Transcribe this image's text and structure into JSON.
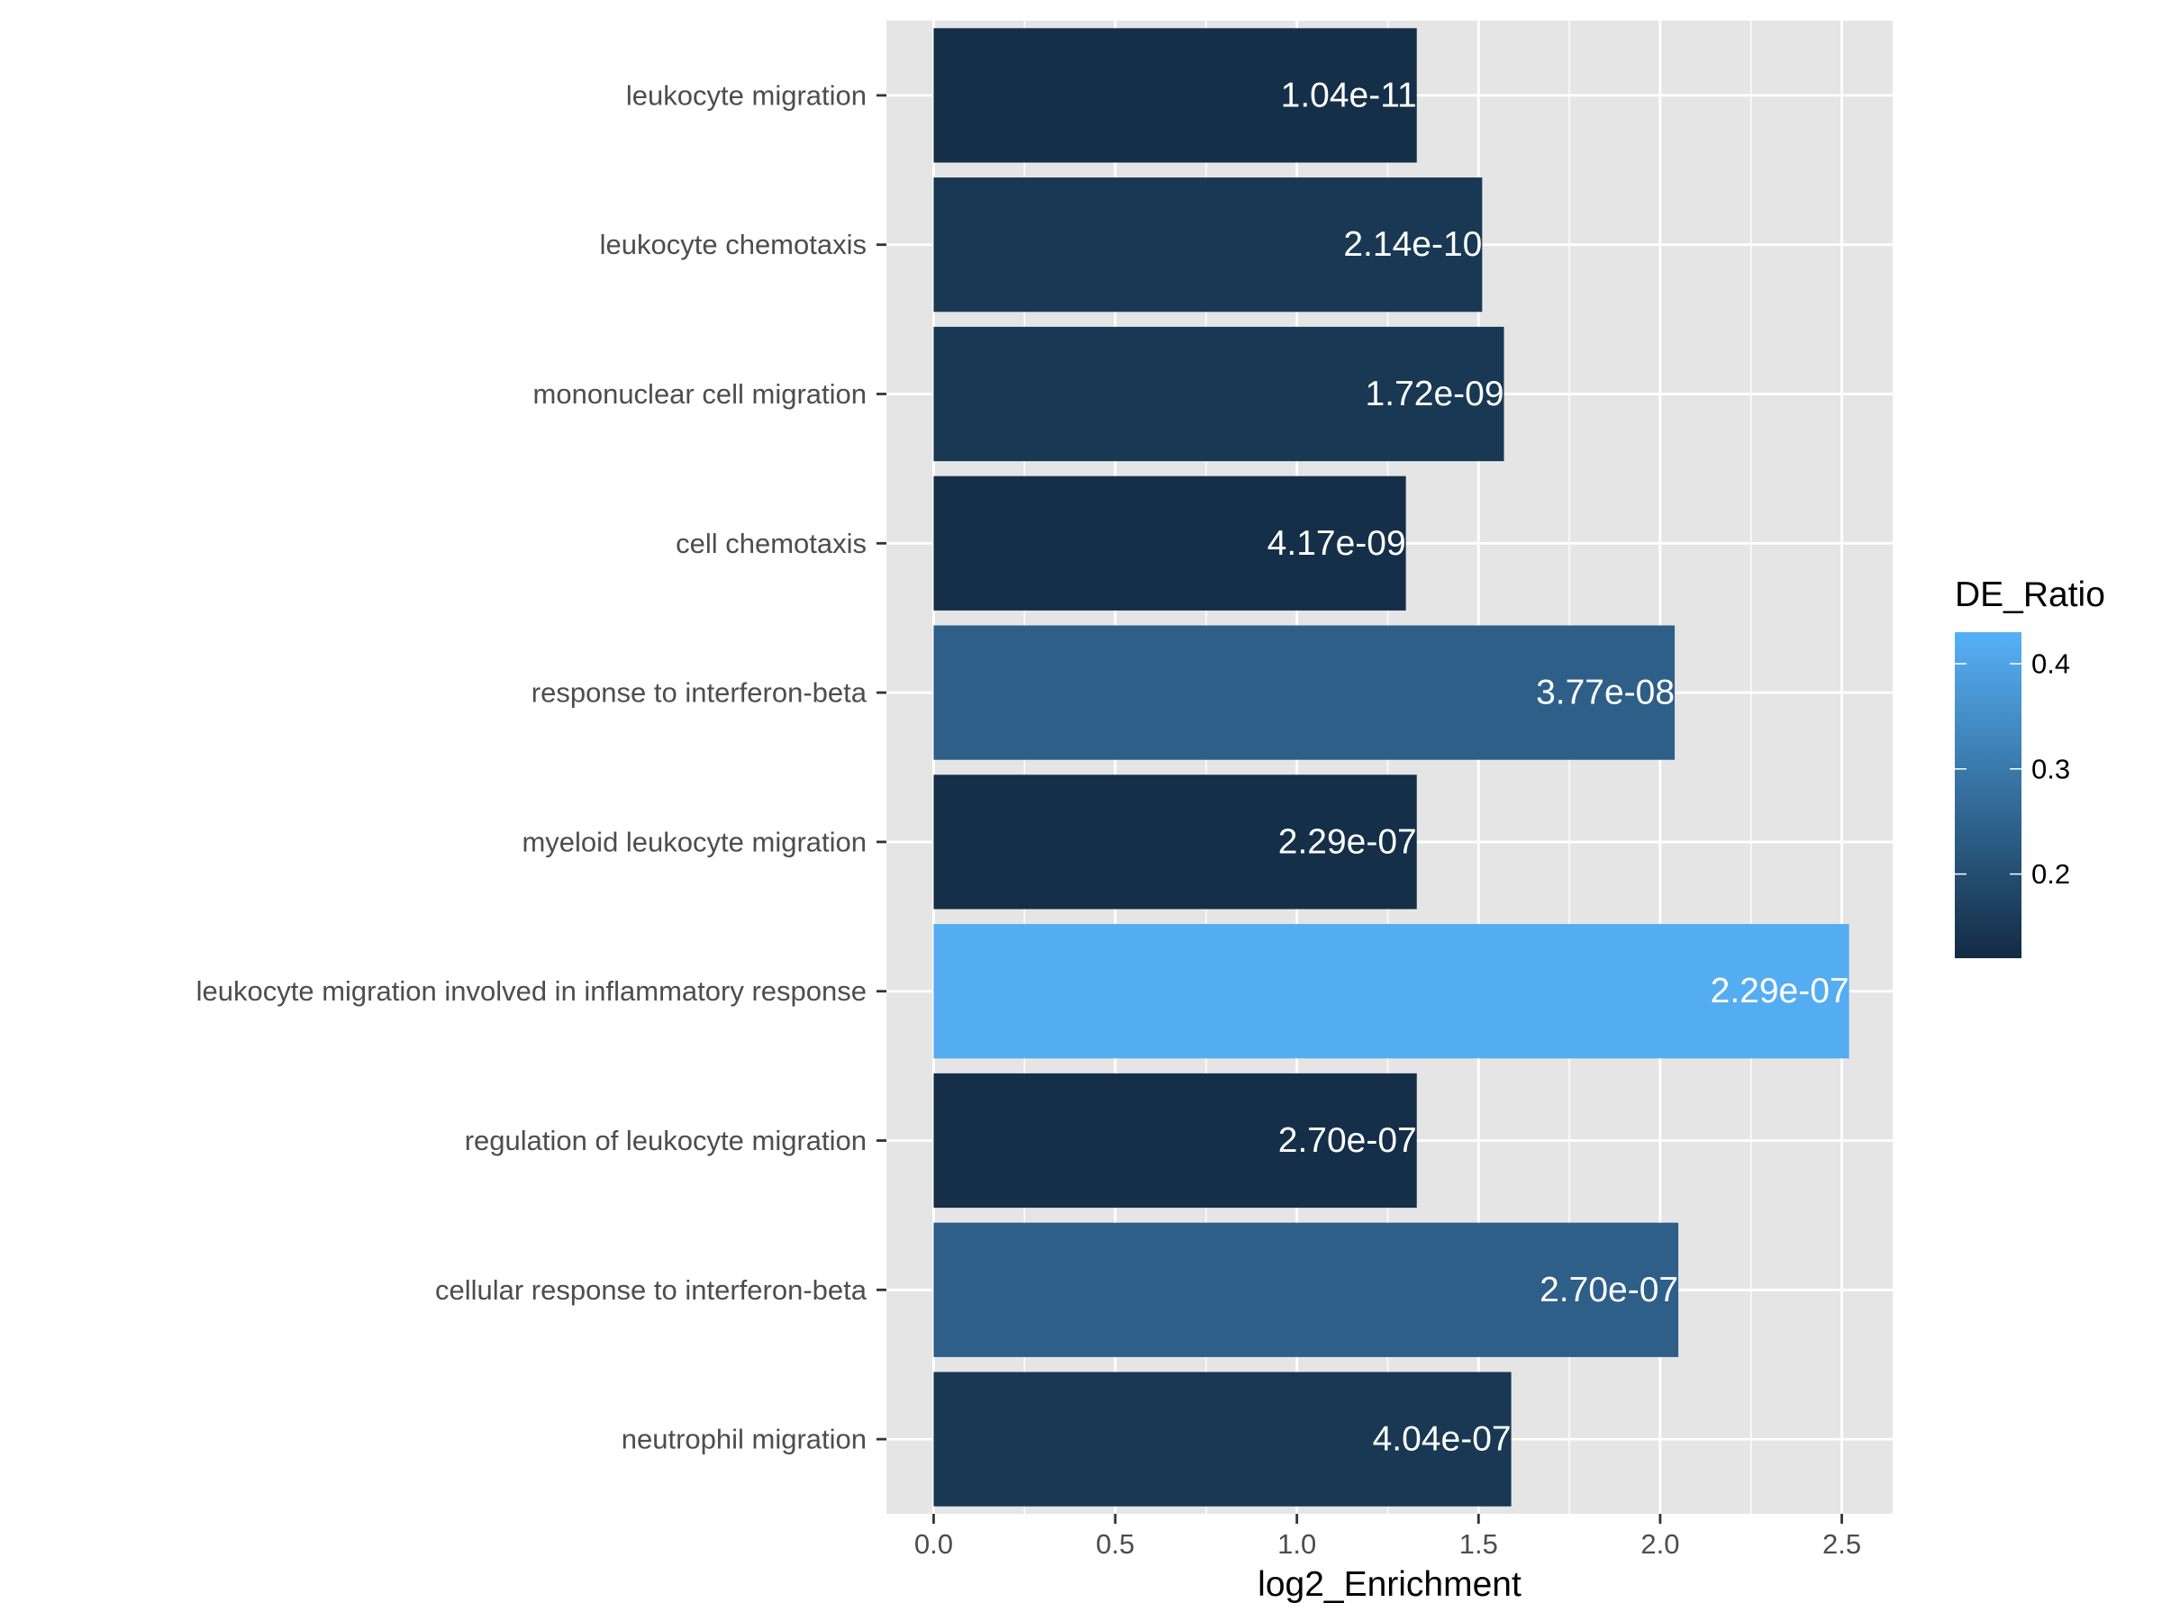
{
  "chart_data": {
    "type": "bar",
    "orientation": "horizontal",
    "categories": [
      "leukocyte migration",
      "leukocyte chemotaxis",
      "mononuclear cell migration",
      "cell chemotaxis",
      "response to interferon-beta",
      "myeloid leukocyte migration",
      "leukocyte migration involved in inflammatory response",
      "regulation of leukocyte migration",
      "cellular response to interferon-beta",
      "neutrophil migration"
    ],
    "values": [
      1.33,
      1.51,
      1.57,
      1.3,
      2.04,
      1.33,
      2.52,
      1.33,
      2.05,
      1.59
    ],
    "de_ratio": [
      0.13,
      0.15,
      0.15,
      0.13,
      0.24,
      0.13,
      0.42,
      0.13,
      0.24,
      0.15
    ],
    "bar_labels": [
      "1.04e-11",
      "2.14e-10",
      "1.72e-09",
      "4.17e-09",
      "3.77e-08",
      "2.29e-07",
      "2.29e-07",
      "2.70e-07",
      "2.70e-07",
      "4.04e-07"
    ],
    "xlabel": "log2_Enrichment",
    "ylabel": "",
    "xlim": [
      -0.13,
      2.64
    ],
    "xticks": [
      0.0,
      0.5,
      1.0,
      1.5,
      2.0,
      2.5
    ],
    "xtick_labels": [
      "0.0",
      "0.5",
      "1.0",
      "1.5",
      "2.0",
      "2.5"
    ],
    "grid": true,
    "legend": {
      "title": "DE_Ratio",
      "position": "right",
      "range": [
        0.12,
        0.43
      ],
      "ticks": [
        0.2,
        0.3,
        0.4
      ],
      "tick_labels": [
        "0.2",
        "0.3",
        "0.4"
      ],
      "color_low": "#132B43",
      "color_high": "#56B1F7"
    },
    "colors": {
      "panel_background": "#e5e5e5",
      "grid": "#ffffff",
      "bar_label": "#ffffff"
    }
  }
}
